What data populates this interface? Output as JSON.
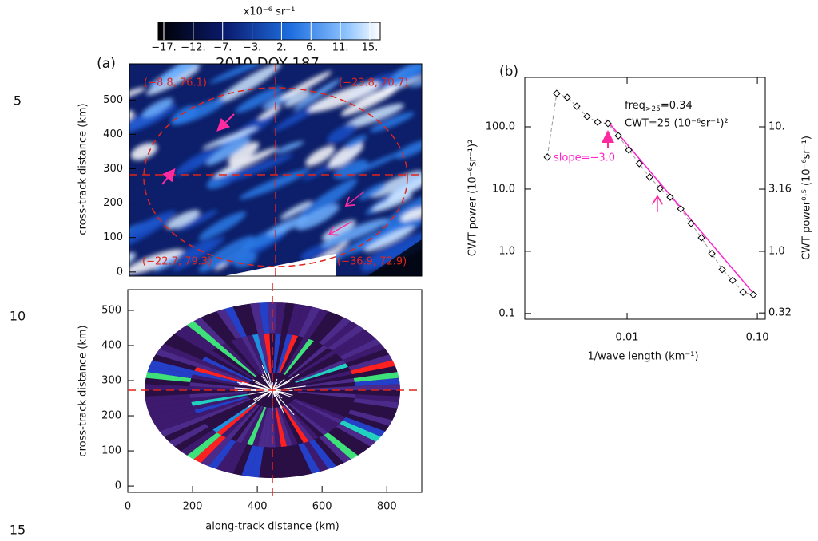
{
  "line_numbers": [
    "5",
    "10",
    "15"
  ],
  "panel_a": {
    "label": "(a)",
    "title": "2010 DOY 187",
    "colorbar": {
      "unit": "x10⁻⁶ sr⁻¹",
      "ticks": [
        "−17.",
        "−12.",
        "−7.",
        "−3.",
        "2.",
        "6.",
        "11.",
        "15."
      ]
    },
    "corners": [
      "(−8.8, 76.1)",
      "(−23.8, 70.7)",
      "(−22.7, 79.3)",
      "(−36.9, 72.9)"
    ],
    "top_map": {
      "y_label": "cross-track distance (km)",
      "ylim": [
        -12,
        605
      ],
      "yticks": [
        0,
        100,
        200,
        300,
        400,
        500
      ]
    },
    "bottom_map": {
      "y_label": "cross-track distance (km)",
      "x_label": "along-track distance (km)",
      "ylim": [
        -18,
        559
      ],
      "yticks": [
        0,
        100,
        200,
        300,
        400,
        500
      ],
      "xlim": [
        0,
        908
      ],
      "xticks": [
        0,
        200,
        400,
        600,
        800
      ]
    }
  },
  "panel_b": {
    "label": "(b)",
    "x": [
      0.00244,
      0.00288,
      0.00347,
      0.0041,
      0.00493,
      0.00593,
      0.00713,
      0.00857,
      0.0103,
      0.0124,
      0.0149,
      0.0179,
      0.0214,
      0.0258,
      0.031,
      0.0372,
      0.0447,
      0.0537,
      0.0646,
      0.0776,
      0.0933
    ],
    "values": [
      32.6,
      345,
      298,
      215,
      147,
      119,
      113,
      72,
      42.5,
      25.7,
      15.6,
      10.3,
      7.4,
      4.8,
      2.8,
      1.65,
      0.92,
      0.51,
      0.34,
      0.22,
      0.2
    ],
    "log_x": true,
    "log_y": true,
    "xlim": [
      0.00164,
      0.115
    ],
    "xticks": [
      0.01,
      {
        "value": 0.1,
        "label": "0.10"
      }
    ],
    "ylim": [
      0.081,
      624
    ],
    "yticks": [
      {
        "value": 0.1,
        "label": "0.1"
      },
      {
        "value": 1,
        "label": "1.0"
      },
      {
        "value": 10,
        "label": "10.0"
      },
      {
        "value": 100,
        "label": "100.0"
      }
    ],
    "y2lim": [
      0.285,
      24.98
    ],
    "y2ticks": [
      0.32,
      {
        "value": 1,
        "label": "1.0"
      },
      3.16,
      {
        "value": 10,
        "label": "10."
      }
    ],
    "x_label": "1/wave length (km⁻¹)",
    "y_label": "CWT power (10⁻⁶sr⁻¹)²",
    "y2_label": "CWT power⁰·⁵ (10⁻⁶sr⁻¹)",
    "annotations": {
      "freq": "freq",
      "freq_sub": ">25",
      "freq_value": "=0.34",
      "cwt": "CWT=25 (10⁻⁶sr⁻¹)²",
      "slope": "slope=−3.0"
    }
  }
}
